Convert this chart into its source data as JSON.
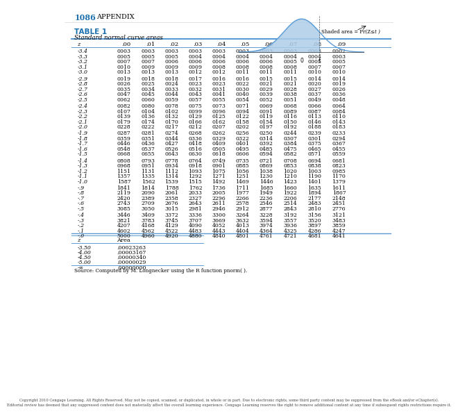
{
  "page_header_num": "1086",
  "page_header_txt": "APPENDIX",
  "table_title": "TABLE 1",
  "table_subtitle": "Standard normal curve areas",
  "col_headers": [
    "z",
    ".00",
    ".01",
    ".02",
    ".03",
    ".04",
    ".05",
    ".06",
    ".07",
    ".08",
    ".09"
  ],
  "rows": [
    [
      "-3.4",
      "0003",
      "0003",
      "0003",
      "0003",
      "0003",
      "0003",
      "0003",
      "0003",
      "0003",
      "0002"
    ],
    [
      "-3.3",
      "0005",
      "0005",
      "0005",
      "0004",
      "0004",
      "0004",
      "0004",
      "0004",
      "0004",
      "0003"
    ],
    [
      "-3.2",
      "0007",
      "0007",
      "0006",
      "0006",
      "0006",
      "0006",
      "0006",
      "0005",
      "0005",
      "0005"
    ],
    [
      "-3.1",
      "0010",
      "0009",
      "0009",
      "0009",
      "0008",
      "0008",
      "0008",
      "0008",
      "0007",
      "0007"
    ],
    [
      "-3.0",
      "0013",
      "0013",
      "0013",
      "0012",
      "0012",
      "0011",
      "0011",
      "0011",
      "0010",
      "0010"
    ],
    [
      "-2.9",
      "0019",
      "0018",
      "0018",
      "0017",
      "0016",
      "0016",
      "0015",
      "0015",
      "0014",
      "0014"
    ],
    [
      "-2.8",
      "0026",
      "0025",
      "0024",
      "0023",
      "0023",
      "0022",
      "0021",
      "0021",
      "0020",
      "0019"
    ],
    [
      "-2.7",
      "0035",
      "0034",
      "0033",
      "0032",
      "0031",
      "0030",
      "0029",
      "0028",
      "0027",
      "0026"
    ],
    [
      "-2.6",
      "0047",
      "0045",
      "0044",
      "0043",
      "0041",
      "0040",
      "0039",
      "0038",
      "0037",
      "0036"
    ],
    [
      "-2.5",
      "0062",
      "0060",
      "0059",
      "0057",
      "0055",
      "0054",
      "0052",
      "0051",
      "0049",
      "0048"
    ],
    [
      "-2.4",
      "0082",
      "0080",
      "0078",
      "0075",
      "0073",
      "0071",
      "0069",
      "0068",
      "0066",
      "0064"
    ],
    [
      "-2.3",
      "0107",
      "0104",
      "0102",
      "0099",
      "0096",
      "0094",
      "0091",
      "0089",
      "0087",
      "0084"
    ],
    [
      "-2.2",
      "0139",
      "0136",
      "0132",
      "0129",
      "0125",
      "0122",
      "0119",
      "0116",
      "0113",
      "0110"
    ],
    [
      "-2.1",
      "0179",
      "0174",
      "0170",
      "0166",
      "0162",
      "0158",
      "0154",
      "0150",
      "0146",
      "0143"
    ],
    [
      "-2.0",
      "0228",
      "0222",
      "0217",
      "0212",
      "0207",
      "0202",
      "0197",
      "0192",
      "0188",
      "0183"
    ],
    [
      "-1.9",
      "0287",
      "0281",
      "0274",
      "0268",
      "0262",
      "0256",
      "0250",
      "0244",
      "0239",
      "0233"
    ],
    [
      "-1.8",
      "0359",
      "0351",
      "0344",
      "0336",
      "0329",
      "0322",
      "0314",
      "0307",
      "0301",
      "0294"
    ],
    [
      "-1.7",
      "0446",
      "0436",
      "0427",
      "0418",
      "0409",
      "0401",
      "0392",
      "0384",
      "0375",
      "0367"
    ],
    [
      "-1.6",
      "0548",
      "0537",
      "0526",
      "0516",
      "0505",
      "0495",
      "0485",
      "0475",
      "0465",
      "0455"
    ],
    [
      "-1.5",
      "0668",
      "0655",
      "0643",
      "0630",
      "0618",
      "0606",
      "0594",
      "0582",
      "0571",
      "0559"
    ],
    [
      "-1.4",
      "0808",
      "0793",
      "0778",
      "0764",
      "0749",
      "0735",
      "0721",
      "0708",
      "0694",
      "0681"
    ],
    [
      "-1.3",
      "0968",
      "0951",
      "0934",
      "0918",
      "0901",
      "0885",
      "0869",
      "0853",
      "0838",
      "0823"
    ],
    [
      "-1.2",
      "1151",
      "1131",
      "1112",
      "1093",
      "1075",
      "1056",
      "1038",
      "1020",
      "1003",
      "0985"
    ],
    [
      "-1.1",
      "1357",
      "1335",
      "1314",
      "1292",
      "1271",
      "1251",
      "1230",
      "1210",
      "1190",
      "1170"
    ],
    [
      "-1.0",
      "1587",
      "1562",
      "1539",
      "1515",
      "1492",
      "1469",
      "1446",
      "1423",
      "1401",
      "1379"
    ],
    [
      "-.9",
      "1841",
      "1814",
      "1788",
      "1762",
      "1736",
      "1711",
      "1685",
      "1660",
      "1635",
      "1611"
    ],
    [
      "-.8",
      "2119",
      "2090",
      "2061",
      "2033",
      "2005",
      "1977",
      "1949",
      "1922",
      "1894",
      "1867"
    ],
    [
      "-.7",
      "2420",
      "2389",
      "2358",
      "2327",
      "2296",
      "2266",
      "2236",
      "2206",
      "2177",
      "2148"
    ],
    [
      "-.6",
      "2743",
      "2709",
      "2676",
      "2643",
      "2611",
      "2578",
      "2546",
      "2514",
      "2483",
      "2451"
    ],
    [
      "-.5",
      "3085",
      "3050",
      "3015",
      "2981",
      "2946",
      "2912",
      "2877",
      "2843",
      "2810",
      "2776"
    ],
    [
      "-.4",
      "3446",
      "3409",
      "3372",
      "3336",
      "3300",
      "3264",
      "3228",
      "3192",
      "3156",
      "3121"
    ],
    [
      "-.3",
      "3821",
      "3783",
      "3745",
      "3707",
      "3669",
      "3632",
      "3594",
      "3557",
      "3520",
      "3483"
    ],
    [
      "-.2",
      "4207",
      "4168",
      "4129",
      "4090",
      "4052",
      "4013",
      "3974",
      "3936",
      "3897",
      "3859"
    ],
    [
      "-.1",
      "4602",
      "4562",
      "4522",
      "4483",
      "4443",
      "4404",
      "4364",
      "4325",
      "4286",
      "4247"
    ],
    [
      "-.0",
      "5000",
      "4960",
      "4920",
      "4880",
      "4840",
      "4801",
      "4761",
      "4721",
      "4681",
      "4641"
    ]
  ],
  "extra_table_headers": [
    "z",
    "Area"
  ],
  "extra_rows": [
    [
      "-3.50",
      ".00023263"
    ],
    [
      "-4.00",
      ".00003167"
    ],
    [
      "-4.50",
      ".00000340"
    ],
    [
      "-5.00",
      ".00000029"
    ],
    [
      "-∞",
      ".00000000"
    ]
  ],
  "source_text": "Source: Computed by M. Longnecker using the R function pnorm( ).",
  "footer_line1": "Copyright 2010 Cengage Learning. All Rights Reserved. May not be copied, scanned, or duplicated, in whole or in part. Due to electronic rights, some third party content may be suppressed from the eBook and/or eChapter(s).",
  "footer_line2": "Editorial review has deemed that any suppressed content does not materially affect the overall learning experience. Cengage Learning reserves the right to remove additional content at any time if subsequent rights restrictions require it.",
  "header_color": "#1a6faf",
  "line_color": "#5b9bd5",
  "bg_color": "#ffffff",
  "text_color": "#000000",
  "normal_curve_fill": "#aecde8",
  "normal_curve_line": "#5b9bd5"
}
